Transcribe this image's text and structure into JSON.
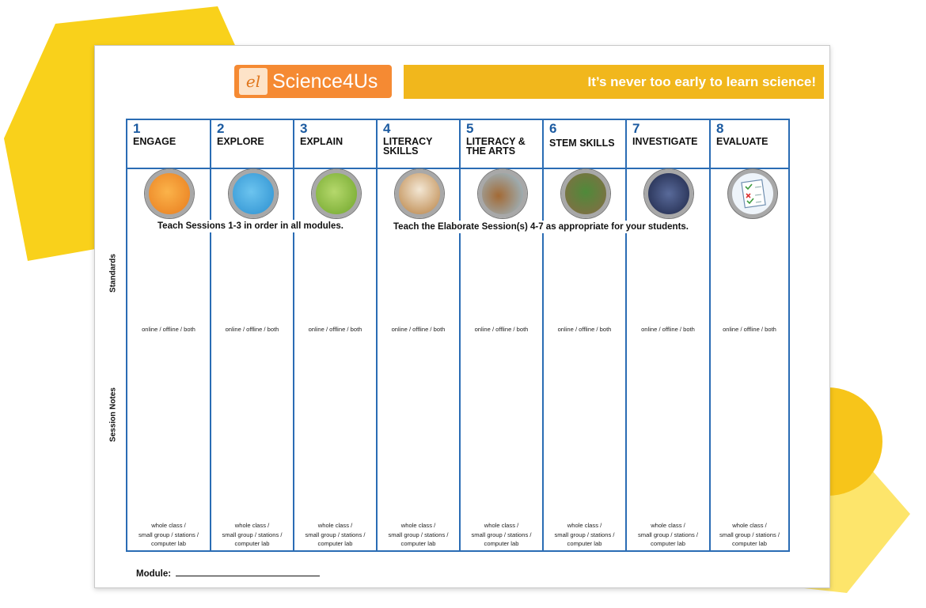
{
  "colors": {
    "hexagon_yellow": "#f9d11b",
    "circle_yellow": "#f7c51a",
    "pale_yellow": "#fde56b",
    "logo_orange": "#f58a33",
    "banner_gold": "#f1b71c",
    "grid_blue": "#2a6cb4"
  },
  "header": {
    "logo_mark": "el",
    "logo_text": "Science4Us",
    "tagline": "It’s never too early to learn science!"
  },
  "instructions": {
    "left": "Teach Sessions 1-3  in order in all modules.",
    "right": "Teach the Elaborate Session(s) 4-7 as  appropriate for your students."
  },
  "row_labels": {
    "standards": "Standards",
    "notes": "Session Notes"
  },
  "columns": [
    {
      "number": "1",
      "title": "ENGAGE",
      "icon": "head-gears-icon",
      "icon_color": "#f39a26",
      "mode": "online / offline / both",
      "group": [
        "whole class /",
        "small group / stations /",
        "computer lab"
      ]
    },
    {
      "number": "2",
      "title": "EXPLORE",
      "icon": "head-sprout-icon",
      "icon_color": "#3aa6e0",
      "mode": "online / offline / both",
      "group": [
        "whole class /",
        "small group / stations /",
        "computer lab"
      ]
    },
    {
      "number": "3",
      "title": "EXPLAIN",
      "icon": "head-brain-icon",
      "icon_color": "#8cbd3f",
      "mode": "online / offline / both",
      "group": [
        "whole class /",
        "small group / stations /",
        "computer lab"
      ]
    },
    {
      "number": "4",
      "title": "LITERACY SKILLS",
      "icon": "cow-icon",
      "icon_color": "#c98b4a",
      "mode": "online / offline / both",
      "group": [
        "whole class /",
        "small group / stations /",
        "computer lab"
      ]
    },
    {
      "number": "5",
      "title": "LITERACY & THE ARTS",
      "icon": "dog-icon",
      "icon_color": "#8fb6cf",
      "mode": "online / offline / both",
      "group": [
        "whole class /",
        "small group / stations /",
        "computer lab"
      ]
    },
    {
      "number": "6",
      "title": "STEM SKILLS",
      "icon": "turtle-icon",
      "icon_color": "#5f8a4c",
      "mode": "online / offline / both",
      "group": [
        "whole class /",
        "small group / stations /",
        "computer lab"
      ]
    },
    {
      "number": "7",
      "title": "INVESTIGATE",
      "icon": "detective-icon",
      "icon_color": "#2e3c6b",
      "mode": "online / offline / both",
      "group": [
        "whole class /",
        "small group / stations /",
        "computer lab"
      ]
    },
    {
      "number": "8",
      "title": "EVALUATE",
      "icon": "checklist-icon",
      "icon_color": "#dfe9f3",
      "mode": "online / offline / both",
      "group": [
        "whole class /",
        "small group / stations /",
        "computer lab"
      ]
    }
  ],
  "footer": {
    "module_label": "Module:"
  }
}
